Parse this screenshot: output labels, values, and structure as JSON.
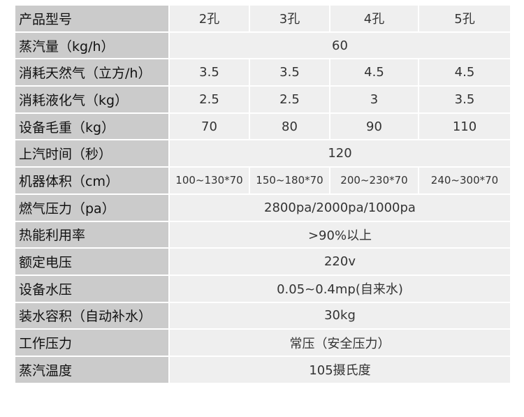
{
  "rows": [
    {
      "label": "产品型号",
      "values": [
        "2孔",
        "3孔",
        "4孔",
        "5孔"
      ]
    },
    {
      "label": "蒸汽量（kg/h）",
      "values": [
        "60"
      ]
    },
    {
      "label": "消耗天然气（立方/h）",
      "values": [
        "3.5",
        "3.5",
        "4.5",
        "4.5"
      ]
    },
    {
      "label": " 消耗液化气（kg）",
      "values": [
        "2.5",
        "2.5",
        "3",
        "3.5"
      ]
    },
    {
      "label": "设备毛重（kg）",
      "values": [
        "70",
        "80",
        "90",
        "110"
      ]
    },
    {
      "label": "上汽时间（秒）",
      "values": [
        "120"
      ]
    },
    {
      "label": "机器体积（cm）",
      "values": [
        "100~130*70",
        "150~180*70",
        "200~230*70",
        "240~300*70"
      ]
    },
    {
      "label": "燃气压力（pa）",
      "values": [
        "2800pa/2000pa/1000pa"
      ]
    },
    {
      "label": "热能利用率",
      "values": [
        ">90%以上"
      ]
    },
    {
      "label": "额定电压",
      "values": [
        "220v"
      ]
    },
    {
      "label": "设备水压",
      "values": [
        "0.05~0.4mp(自来水)"
      ]
    },
    {
      "label": "装水容积（自动补水）",
      "values": [
        "30kg"
      ]
    },
    {
      "label": "工作压力",
      "values": [
        "常压（安全压力）"
      ]
    },
    {
      "label": "蒸汽温度",
      "values": [
        "105摄氏度"
      ]
    }
  ]
}
